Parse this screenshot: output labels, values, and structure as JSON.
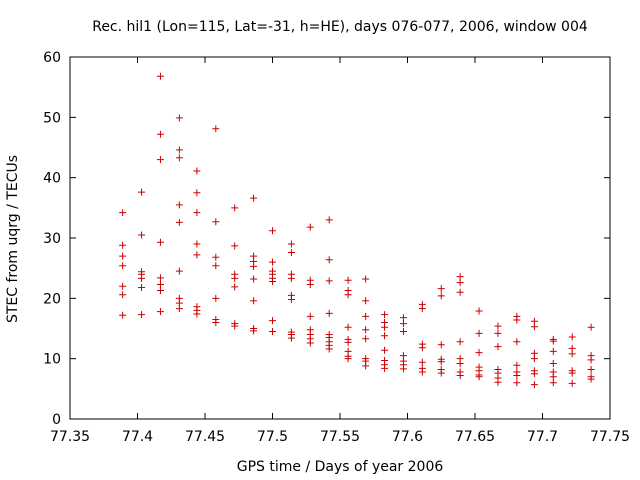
{
  "chart_data": {
    "type": "scatter",
    "title": "Rec. hil1 (Lon=115, Lat=-31, h=HE), days 076-077, 2006, window 004",
    "xlabel": "GPS time / Days of year 2006",
    "ylabel": "STEC from uqrg / TECUs",
    "xlim": [
      77.35,
      77.75
    ],
    "ylim": [
      0,
      60
    ],
    "xticks": [
      77.35,
      77.4,
      77.45,
      77.5,
      77.55,
      77.6,
      77.65,
      77.7,
      77.75
    ],
    "xtick_labels": [
      "77.35",
      "77.4",
      "77.45",
      "77.5",
      "77.55",
      "77.6",
      "77.65",
      "77.7",
      "77.75"
    ],
    "yticks": [
      0,
      10,
      20,
      30,
      40,
      50,
      60
    ],
    "ytick_labels": [
      "0",
      "10",
      "20",
      "30",
      "40",
      "50",
      "60"
    ],
    "grid": false,
    "marker_color": "#cc0000",
    "series": [
      {
        "points": [
          [
            77.389,
            34.2
          ],
          [
            77.389,
            28.8
          ],
          [
            77.389,
            27.0
          ],
          [
            77.389,
            25.4
          ],
          [
            77.389,
            22.0
          ],
          [
            77.389,
            20.6
          ],
          [
            77.389,
            17.2
          ],
          [
            77.403,
            37.6
          ],
          [
            77.403,
            30.5
          ],
          [
            77.403,
            24.4
          ],
          [
            77.403,
            24.0
          ],
          [
            77.403,
            23.3
          ],
          [
            77.403,
            21.8
          ],
          [
            77.403,
            17.3
          ],
          [
            77.417,
            56.8
          ],
          [
            77.417,
            47.2
          ],
          [
            77.417,
            43.0
          ],
          [
            77.417,
            29.3
          ],
          [
            77.417,
            23.4
          ],
          [
            77.417,
            22.3
          ],
          [
            77.417,
            21.3
          ],
          [
            77.417,
            17.8
          ],
          [
            77.431,
            49.9
          ],
          [
            77.431,
            44.6
          ],
          [
            77.431,
            43.3
          ],
          [
            77.431,
            35.5
          ],
          [
            77.431,
            32.6
          ],
          [
            77.431,
            24.5
          ],
          [
            77.431,
            20.0
          ],
          [
            77.431,
            19.2
          ],
          [
            77.431,
            18.3
          ],
          [
            77.444,
            41.1
          ],
          [
            77.444,
            37.5
          ],
          [
            77.444,
            34.2
          ],
          [
            77.444,
            29.0
          ],
          [
            77.444,
            27.2
          ],
          [
            77.444,
            18.6
          ],
          [
            77.444,
            18.0
          ],
          [
            77.444,
            17.4
          ],
          [
            77.458,
            48.1
          ],
          [
            77.458,
            32.7
          ],
          [
            77.458,
            26.8
          ],
          [
            77.458,
            25.4
          ],
          [
            77.458,
            20.0
          ],
          [
            77.458,
            16.5
          ],
          [
            77.458,
            16.0
          ],
          [
            77.472,
            35.0
          ],
          [
            77.472,
            28.7
          ],
          [
            77.472,
            24.0
          ],
          [
            77.472,
            23.3
          ],
          [
            77.472,
            21.9
          ],
          [
            77.472,
            15.8
          ],
          [
            77.472,
            15.4
          ],
          [
            77.486,
            36.6
          ],
          [
            77.486,
            27.0
          ],
          [
            77.486,
            26.1
          ],
          [
            77.486,
            25.3
          ],
          [
            77.486,
            23.2
          ],
          [
            77.486,
            19.6
          ],
          [
            77.486,
            15.0
          ],
          [
            77.486,
            14.6
          ],
          [
            77.5,
            31.2
          ],
          [
            77.5,
            26.0
          ],
          [
            77.5,
            24.5
          ],
          [
            77.5,
            24.0
          ],
          [
            77.5,
            23.3
          ],
          [
            77.5,
            22.8
          ],
          [
            77.5,
            16.3
          ],
          [
            77.5,
            14.5
          ],
          [
            77.514,
            29.0
          ],
          [
            77.514,
            27.6
          ],
          [
            77.514,
            24.0
          ],
          [
            77.514,
            23.3
          ],
          [
            77.514,
            20.5
          ],
          [
            77.514,
            19.8
          ],
          [
            77.514,
            14.4
          ],
          [
            77.514,
            14.0
          ],
          [
            77.514,
            13.4
          ],
          [
            77.528,
            31.8
          ],
          [
            77.528,
            23.0
          ],
          [
            77.528,
            22.3
          ],
          [
            77.528,
            17.0
          ],
          [
            77.528,
            14.8
          ],
          [
            77.528,
            14.0
          ],
          [
            77.528,
            13.3
          ],
          [
            77.528,
            12.6
          ],
          [
            77.542,
            33.0
          ],
          [
            77.542,
            26.4
          ],
          [
            77.542,
            22.9
          ],
          [
            77.542,
            17.5
          ],
          [
            77.542,
            14.0
          ],
          [
            77.542,
            13.5
          ],
          [
            77.542,
            12.8
          ],
          [
            77.542,
            12.2
          ],
          [
            77.542,
            11.6
          ],
          [
            77.556,
            23.0
          ],
          [
            77.556,
            21.3
          ],
          [
            77.556,
            20.6
          ],
          [
            77.556,
            15.2
          ],
          [
            77.556,
            13.2
          ],
          [
            77.556,
            12.7
          ],
          [
            77.556,
            11.2
          ],
          [
            77.556,
            10.4
          ],
          [
            77.556,
            10.0
          ],
          [
            77.569,
            23.2
          ],
          [
            77.569,
            19.6
          ],
          [
            77.569,
            17.0
          ],
          [
            77.569,
            14.8
          ],
          [
            77.569,
            13.3
          ],
          [
            77.569,
            10.0
          ],
          [
            77.569,
            9.6
          ],
          [
            77.569,
            8.8
          ],
          [
            77.583,
            17.3
          ],
          [
            77.583,
            16.0
          ],
          [
            77.583,
            15.2
          ],
          [
            77.583,
            13.8
          ],
          [
            77.583,
            11.4
          ],
          [
            77.583,
            9.7
          ],
          [
            77.583,
            9.0
          ],
          [
            77.583,
            8.4
          ],
          [
            77.597,
            16.8
          ],
          [
            77.597,
            15.8
          ],
          [
            77.597,
            14.5
          ],
          [
            77.597,
            10.5
          ],
          [
            77.597,
            9.6
          ],
          [
            77.597,
            9.0
          ],
          [
            77.597,
            8.3
          ],
          [
            77.611,
            19.0
          ],
          [
            77.611,
            18.3
          ],
          [
            77.611,
            12.4
          ],
          [
            77.611,
            11.8
          ],
          [
            77.611,
            9.4
          ],
          [
            77.611,
            8.4
          ],
          [
            77.611,
            7.8
          ],
          [
            77.625,
            21.6
          ],
          [
            77.625,
            20.4
          ],
          [
            77.625,
            12.3
          ],
          [
            77.625,
            9.9
          ],
          [
            77.625,
            9.5
          ],
          [
            77.625,
            8.2
          ],
          [
            77.625,
            7.6
          ],
          [
            77.639,
            23.6
          ],
          [
            77.639,
            22.6
          ],
          [
            77.639,
            21.0
          ],
          [
            77.639,
            12.8
          ],
          [
            77.639,
            10.0
          ],
          [
            77.639,
            9.2
          ],
          [
            77.639,
            7.8
          ],
          [
            77.639,
            7.2
          ],
          [
            77.653,
            17.9
          ],
          [
            77.653,
            14.2
          ],
          [
            77.653,
            11.0
          ],
          [
            77.653,
            8.6
          ],
          [
            77.653,
            8.0
          ],
          [
            77.653,
            7.3
          ],
          [
            77.653,
            7.0
          ],
          [
            77.667,
            15.4
          ],
          [
            77.667,
            14.2
          ],
          [
            77.667,
            12.0
          ],
          [
            77.667,
            8.2
          ],
          [
            77.667,
            7.6
          ],
          [
            77.667,
            6.8
          ],
          [
            77.667,
            6.1
          ],
          [
            77.681,
            17.0
          ],
          [
            77.681,
            16.4
          ],
          [
            77.681,
            12.8
          ],
          [
            77.681,
            8.9
          ],
          [
            77.681,
            7.8
          ],
          [
            77.681,
            7.2
          ],
          [
            77.681,
            6.0
          ],
          [
            77.694,
            16.2
          ],
          [
            77.694,
            15.3
          ],
          [
            77.694,
            10.9
          ],
          [
            77.694,
            10.0
          ],
          [
            77.694,
            8.0
          ],
          [
            77.694,
            7.5
          ],
          [
            77.694,
            5.7
          ],
          [
            77.708,
            13.2
          ],
          [
            77.708,
            12.9
          ],
          [
            77.708,
            11.2
          ],
          [
            77.708,
            9.2
          ],
          [
            77.708,
            7.8
          ],
          [
            77.708,
            7.0
          ],
          [
            77.708,
            6.0
          ],
          [
            77.722,
            13.6
          ],
          [
            77.722,
            11.7
          ],
          [
            77.722,
            10.8
          ],
          [
            77.722,
            8.0
          ],
          [
            77.722,
            7.6
          ],
          [
            77.722,
            5.9
          ],
          [
            77.736,
            15.2
          ],
          [
            77.736,
            10.5
          ],
          [
            77.736,
            9.8
          ],
          [
            77.736,
            8.2
          ],
          [
            77.736,
            7.0
          ],
          [
            77.736,
            6.6
          ]
        ]
      }
    ]
  }
}
